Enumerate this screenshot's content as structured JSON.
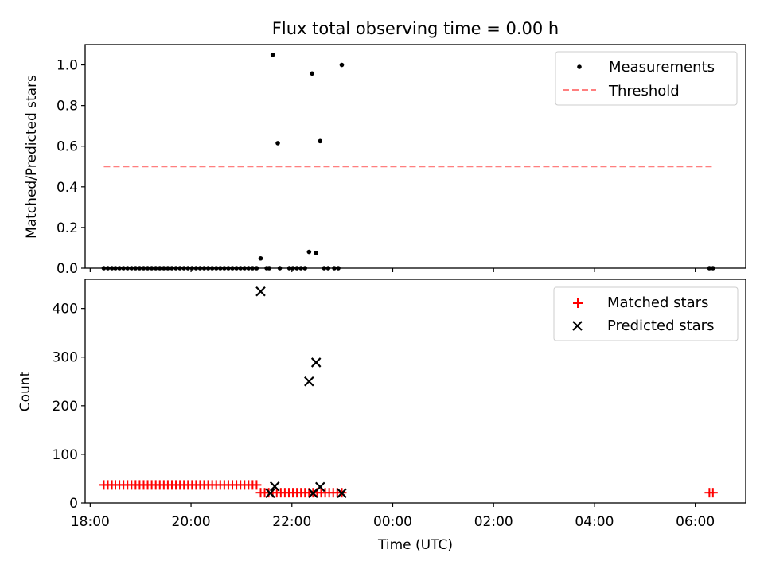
{
  "chart_data": [
    {
      "type": "scatter",
      "title": "Flux total observing time = 0.00 h",
      "xlabel": "",
      "ylabel": "Matched/Predicted stars",
      "x_axis": "time (UTC), hours since 18:00 on the first evening",
      "ylim": [
        0,
        1.1
      ],
      "yticks": [
        "0.0",
        "0.2",
        "0.4",
        "0.6",
        "0.8",
        "1.0"
      ],
      "legend": "top-right",
      "series": [
        {
          "name": "Measurements",
          "kind": "points",
          "color": "#000000",
          "x": [
            0.27,
            0.35,
            0.43,
            0.5,
            0.58,
            0.66,
            0.74,
            0.82,
            0.9,
            0.98,
            1.06,
            1.14,
            1.22,
            1.3,
            1.38,
            1.46,
            1.54,
            1.62,
            1.7,
            1.78,
            1.86,
            1.94,
            2.02,
            2.1,
            2.18,
            2.26,
            2.34,
            2.42,
            2.5,
            2.58,
            2.66,
            2.74,
            2.82,
            2.9,
            2.98,
            3.06,
            3.14,
            3.22,
            3.3,
            3.38,
            3.5,
            3.55,
            3.62,
            3.72,
            3.76,
            3.95,
            4.02,
            4.1,
            4.18,
            4.26,
            4.34,
            4.4,
            4.48,
            4.56,
            4.64,
            4.72,
            4.84,
            4.92,
            4.99,
            12.28,
            12.35
          ],
          "y": [
            0,
            0,
            0,
            0,
            0,
            0,
            0,
            0,
            0,
            0,
            0,
            0,
            0,
            0,
            0,
            0,
            0,
            0,
            0,
            0,
            0,
            0,
            0,
            0,
            0,
            0,
            0,
            0,
            0,
            0,
            0,
            0,
            0,
            0,
            0,
            0,
            0,
            0,
            0,
            0.048,
            0,
            0,
            1.05,
            0.615,
            0,
            0,
            0,
            0,
            0,
            0,
            0.08,
            0.958,
            0.075,
            0.625,
            0,
            0,
            0,
            0,
            1.0,
            0,
            0
          ]
        },
        {
          "name": "Threshold",
          "kind": "dashed-line",
          "color": "#ff7f7f",
          "x": [
            0.27,
            12.4
          ],
          "y": [
            0.5,
            0.5
          ]
        }
      ]
    },
    {
      "type": "scatter",
      "title": "",
      "xlabel": "Time (UTC)",
      "ylabel": "Count",
      "ylim": [
        0,
        460
      ],
      "yticks": [
        "0",
        "100",
        "200",
        "300",
        "400"
      ],
      "xticks": [
        "18:00",
        "20:00",
        "22:00",
        "00:00",
        "02:00",
        "04:00",
        "06:00"
      ],
      "xlim_hours_since_1800": [
        -0.1,
        13.0
      ],
      "legend": "top-right",
      "series": [
        {
          "name": "Matched stars",
          "marker": "plus",
          "color": "#ff0000",
          "x": [
            0.27,
            0.35,
            0.43,
            0.5,
            0.58,
            0.66,
            0.74,
            0.82,
            0.9,
            0.98,
            1.06,
            1.14,
            1.22,
            1.3,
            1.38,
            1.46,
            1.54,
            1.62,
            1.7,
            1.78,
            1.86,
            1.94,
            2.02,
            2.1,
            2.18,
            2.26,
            2.34,
            2.42,
            2.5,
            2.58,
            2.66,
            2.74,
            2.82,
            2.9,
            2.98,
            3.06,
            3.14,
            3.22,
            3.3,
            3.38,
            3.46,
            3.54,
            3.62,
            3.7,
            3.78,
            3.86,
            3.94,
            4.02,
            4.1,
            4.18,
            4.26,
            4.34,
            4.42,
            4.5,
            4.58,
            4.66,
            4.74,
            4.82,
            4.9,
            4.99,
            12.28,
            12.35
          ],
          "y": [
            37,
            37,
            37,
            37,
            37,
            37,
            37,
            37,
            37,
            37,
            37,
            37,
            37,
            37,
            37,
            37,
            37,
            37,
            37,
            37,
            37,
            37,
            37,
            37,
            37,
            37,
            37,
            37,
            37,
            37,
            37,
            37,
            37,
            37,
            37,
            37,
            37,
            37,
            37,
            21,
            21,
            21,
            21,
            21,
            21,
            21,
            21,
            21,
            21,
            21,
            21,
            21,
            21,
            21,
            21,
            21,
            21,
            21,
            21,
            21,
            21,
            21
          ]
        },
        {
          "name": "Predicted stars",
          "marker": "x",
          "color": "#000000",
          "x": [
            3.38,
            3.57,
            3.66,
            4.34,
            4.42,
            4.48,
            4.56,
            4.99
          ],
          "y": [
            435,
            20,
            34,
            250,
            20,
            289,
            33,
            20
          ]
        }
      ]
    }
  ]
}
